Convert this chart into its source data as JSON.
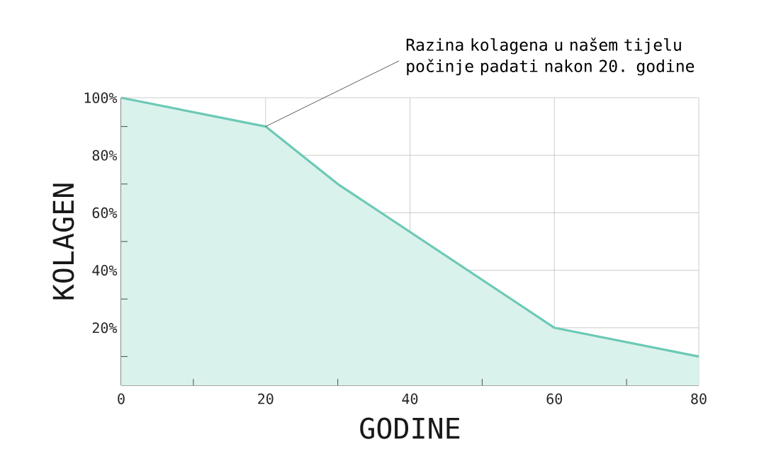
{
  "chart_data": {
    "type": "area",
    "xlabel": "GODINE",
    "ylabel": "KOLAGEN",
    "x": [
      0,
      20,
      30,
      60,
      80
    ],
    "series": [
      {
        "color": "#6cc9b5",
        "values": [
          100,
          90,
          70,
          20,
          10
        ]
      }
    ],
    "xlim": [
      0,
      80
    ],
    "ylim": [
      0,
      100
    ],
    "xticks": [
      0,
      {
        "value": 10,
        "label": null
      },
      20,
      {
        "value": 30,
        "label": null
      },
      40,
      {
        "value": 50,
        "label": null
      },
      60,
      {
        "value": 70,
        "label": null
      },
      80
    ],
    "yticks": [
      {
        "value": 10,
        "label": null
      },
      {
        "value": 20,
        "label": "20%"
      },
      {
        "value": 30,
        "label": null
      },
      {
        "value": 40,
        "label": "40%"
      },
      {
        "value": 50,
        "label": null
      },
      {
        "value": 60,
        "label": "60%"
      },
      {
        "value": 70,
        "label": null
      },
      {
        "value": 80,
        "label": "80%"
      },
      {
        "value": 90,
        "label": null
      },
      {
        "value": 100,
        "label": "100%"
      }
    ],
    "grid": true,
    "annotations": [
      {
        "text": "Razina kolagena u našem tijelu počinje padati nakon 20. godine",
        "x": 20,
        "y": 90
      }
    ]
  }
}
